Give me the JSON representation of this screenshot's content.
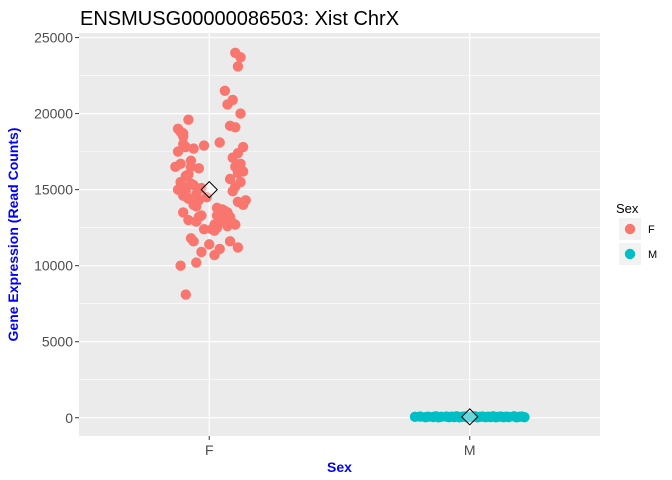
{
  "chart_data": {
    "type": "scatter",
    "title": "ENSMUSG00000086503: Xist ChrX",
    "xlabel": "Sex",
    "ylabel": "Gene Expression (Read Counts)",
    "categories": [
      "F",
      "M"
    ],
    "ylim": [
      -1200,
      25300
    ],
    "yticks": [
      0,
      5000,
      10000,
      15000,
      20000,
      25000
    ],
    "ytick_labels": [
      "0",
      "5000",
      "10000",
      "15000",
      "20000",
      "25000"
    ],
    "grid": true,
    "legend": {
      "title": "Sex",
      "position": "right",
      "entries": [
        "F",
        "M"
      ]
    },
    "colors": {
      "F": "#F8766D",
      "M": "#00BFC4",
      "panel": "#EBEBEB",
      "grid": "#FFFFFF",
      "axis_label": "#0000FF"
    },
    "series": [
      {
        "name": "F",
        "x_jitter": [
          -0.12,
          -0.11,
          -0.1,
          -0.09,
          -0.12,
          -0.08,
          -0.1,
          -0.11,
          -0.07,
          -0.13,
          -0.06,
          -0.09,
          -0.12,
          -0.05,
          -0.1,
          -0.08,
          -0.04,
          -0.11,
          -0.07,
          -0.03,
          -0.09,
          -0.06,
          -0.1,
          -0.08,
          -0.05,
          -0.04,
          -0.02,
          -0.07,
          -0.06,
          -0.03,
          -0.11,
          -0.05,
          -0.09,
          -0.08,
          -0.04,
          -0.02,
          -0.07,
          -0.1,
          -0.06,
          -0.01,
          -0.05,
          -0.03,
          0.02,
          0.03,
          0.01,
          0.04,
          0.0,
          0.02,
          0.05,
          0.03,
          0.06,
          0.05,
          0.04,
          0.07,
          0.08,
          0.06,
          0.03,
          0.09,
          0.07,
          0.1,
          0.05,
          0.02,
          0.08,
          0.11,
          0.06,
          0.09,
          0.07,
          0.12,
          0.1,
          0.08,
          0.13,
          0.11,
          0.09,
          0.12,
          0.1,
          0.13,
          0.11,
          0.08,
          0.12,
          0.1,
          0.09,
          0.14,
          0.11,
          0.13,
          0.12,
          0.1,
          0.11,
          -0.1,
          0.04
        ],
        "values": [
          19000,
          18800,
          18500,
          17800,
          17500,
          19600,
          18000,
          16700,
          16900,
          16500,
          17700,
          15900,
          15000,
          14700,
          14600,
          14400,
          14300,
          15500,
          15400,
          15100,
          14900,
          14000,
          13500,
          13000,
          12900,
          13200,
          12400,
          11800,
          11600,
          10900,
          10000,
          10200,
          8100,
          16000,
          16400,
          17900,
          16500,
          15200,
          15300,
          14500,
          13900,
          13300,
          12700,
          12500,
          12400,
          11100,
          11400,
          10700,
          13700,
          13800,
          13600,
          13000,
          13400,
          13500,
          13200,
          12900,
          13300,
          12800,
          12600,
          12700,
          12900,
          12300,
          11600,
          11200,
          21500,
          20900,
          20600,
          20000,
          19100,
          19200,
          17800,
          17400,
          17100,
          16700,
          16500,
          16200,
          16100,
          15700,
          15500,
          15200,
          14900,
          14300,
          14200,
          14000,
          23700,
          24000,
          23100,
          18700,
          18100
        ],
        "note": "F group jittered points"
      },
      {
        "name": "M",
        "values": [
          60,
          80,
          40,
          70,
          50,
          90,
          30,
          60,
          80,
          40,
          70,
          50,
          90,
          30,
          60,
          80,
          40,
          70,
          50,
          90,
          30,
          60,
          80,
          40,
          70,
          50,
          90,
          30,
          60,
          80,
          40,
          70,
          50,
          90,
          30,
          60,
          80,
          40
        ],
        "x_jitter": [
          -0.21,
          -0.19,
          -0.17,
          -0.16,
          -0.14,
          -0.13,
          -0.12,
          -0.11,
          -0.09,
          -0.08,
          -0.07,
          -0.06,
          -0.05,
          -0.04,
          -0.03,
          -0.02,
          -0.01,
          0.0,
          0.01,
          0.02,
          0.03,
          0.04,
          0.05,
          0.06,
          0.07,
          0.08,
          0.09,
          0.1,
          0.11,
          0.12,
          0.13,
          0.14,
          0.15,
          0.17,
          0.18,
          0.19,
          0.2,
          0.21
        ]
      }
    ],
    "means": [
      {
        "category": "F",
        "value": 15000
      },
      {
        "category": "M",
        "value": 60
      }
    ]
  }
}
